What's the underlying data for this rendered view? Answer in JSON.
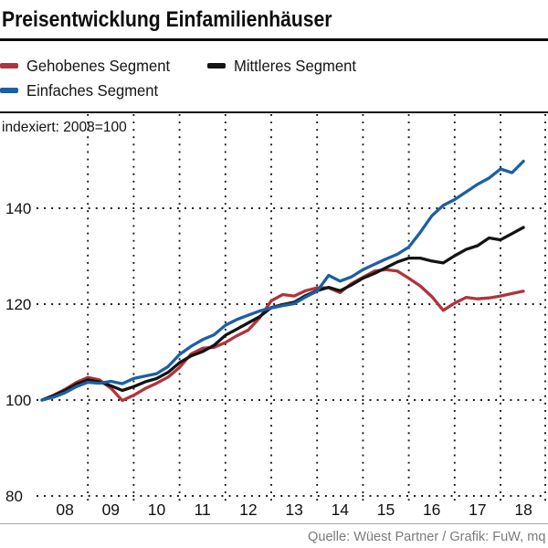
{
  "title": "Preisentwicklung Einfamilienhäuser",
  "annotation": "indexiert: 2008=100",
  "source": "Quelle: Wüest Partner / Grafik: FuW, mq",
  "legend": [
    {
      "label": "Gehobenes Segment",
      "color": "#b0343c"
    },
    {
      "label": "Mittleres Segment",
      "color": "#141414"
    },
    {
      "label": "Einfaches Segment",
      "color": "#1d5fa4"
    }
  ],
  "chart_data": {
    "type": "line",
    "title": "Preisentwicklung Einfamilienhäuser",
    "ylabel": "indexiert: 2008=100",
    "xlabel": "",
    "ylim": [
      80,
      160
    ],
    "xlim": [
      2008,
      2019
    ],
    "grid": "dotted",
    "legend_position": "top-left",
    "yticks": [
      80,
      100,
      120,
      140
    ],
    "xticks": [
      {
        "label": "08",
        "t": 2008.5
      },
      {
        "label": "09",
        "t": 2009.5
      },
      {
        "label": "10",
        "t": 2010.5
      },
      {
        "label": "11",
        "t": 2011.5
      },
      {
        "label": "12",
        "t": 2012.5
      },
      {
        "label": "13",
        "t": 2013.5
      },
      {
        "label": "14",
        "t": 2014.5
      },
      {
        "label": "15",
        "t": 2015.5
      },
      {
        "label": "16",
        "t": 2016.5
      },
      {
        "label": "17",
        "t": 2017.5
      },
      {
        "label": "18",
        "t": 2018.5
      }
    ],
    "grid_years": [
      2009,
      2010,
      2011,
      2012,
      2013,
      2014,
      2015,
      2016,
      2017,
      2018,
      2019
    ],
    "x": [
      2008,
      2008.25,
      2008.5,
      2008.75,
      2009,
      2009.25,
      2009.5,
      2009.75,
      2010,
      2010.25,
      2010.5,
      2010.75,
      2011,
      2011.25,
      2011.5,
      2011.75,
      2012,
      2012.25,
      2012.5,
      2012.75,
      2013,
      2013.25,
      2013.5,
      2013.75,
      2014,
      2014.25,
      2014.5,
      2014.75,
      2015,
      2015.25,
      2015.5,
      2015.75,
      2016,
      2016.25,
      2016.5,
      2016.75,
      2017,
      2017.25,
      2017.5,
      2017.75,
      2018,
      2018.25,
      2018.5
    ],
    "series": [
      {
        "name": "Gehobenes Segment",
        "color": "#b0343c",
        "values": [
          100.0,
          101.0,
          102.2,
          103.7,
          104.7,
          104.2,
          102.5,
          99.9,
          101.0,
          102.4,
          103.5,
          104.8,
          106.8,
          109.6,
          110.8,
          111.0,
          112.0,
          113.4,
          114.6,
          117.2,
          120.7,
          122.0,
          121.7,
          122.8,
          123.4,
          123.4,
          122.4,
          124.3,
          125.6,
          126.9,
          127.2,
          126.9,
          125.4,
          123.8,
          121.6,
          118.7,
          120.2,
          121.4,
          121.1,
          121.3,
          121.7,
          122.2,
          122.7
        ]
      },
      {
        "name": "Mittleres Segment",
        "color": "#141414",
        "values": [
          100.0,
          100.9,
          102.0,
          103.3,
          104.2,
          103.8,
          103.0,
          102.0,
          102.8,
          103.8,
          104.5,
          105.8,
          107.8,
          109.2,
          110.1,
          111.4,
          113.5,
          114.8,
          116.1,
          117.4,
          119.3,
          119.9,
          120.4,
          121.8,
          122.8,
          123.5,
          122.8,
          124.0,
          125.4,
          126.4,
          127.6,
          128.8,
          129.6,
          129.6,
          129.0,
          128.6,
          130.1,
          131.4,
          132.2,
          133.8,
          133.4,
          134.7,
          136.0
        ]
      },
      {
        "name": "Einfaches Segment",
        "color": "#1d5fa4",
        "values": [
          100.0,
          100.6,
          101.5,
          102.8,
          103.7,
          103.5,
          103.9,
          103.4,
          104.5,
          105.0,
          105.5,
          107.0,
          109.5,
          111.2,
          112.6,
          113.6,
          115.6,
          116.8,
          117.7,
          118.6,
          119.2,
          119.7,
          120.1,
          121.5,
          122.7,
          126.0,
          124.8,
          125.7,
          127.2,
          128.3,
          129.4,
          130.4,
          131.9,
          135.0,
          138.4,
          140.6,
          141.8,
          143.4,
          145.0,
          146.3,
          148.2,
          147.4,
          149.8
        ]
      }
    ]
  }
}
